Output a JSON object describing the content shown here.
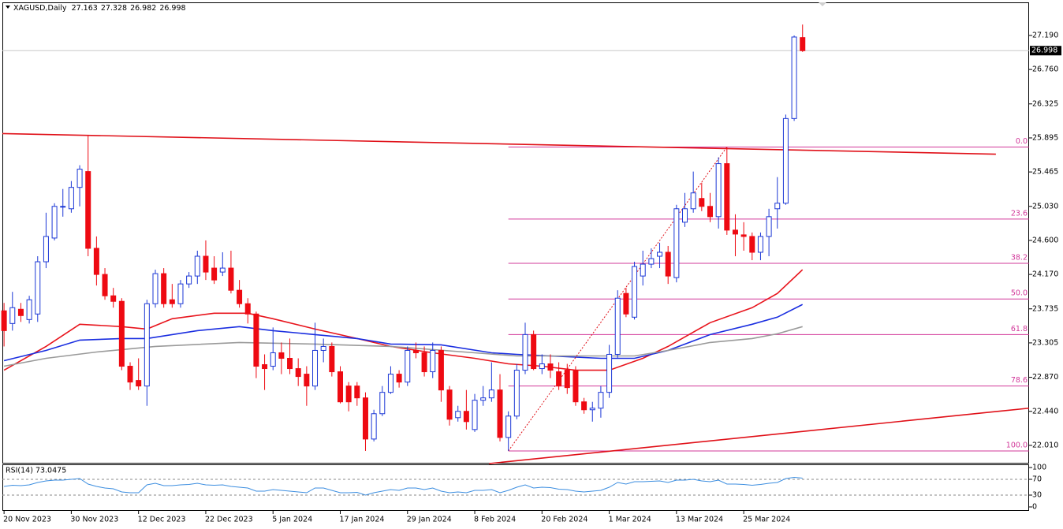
{
  "chart_data": {
    "type": "candlestick",
    "title": "XAGUSD,Daily",
    "categories": [
      "20 Nov 2023",
      null,
      null,
      null,
      null,
      null,
      null,
      null,
      "30 Nov 2023",
      null,
      null,
      null,
      null,
      null,
      null,
      null,
      "12 Dec 2023",
      null,
      null,
      null,
      null,
      null,
      null,
      null,
      "22 Dec 2023",
      null,
      null,
      null,
      null,
      null,
      null,
      null,
      "5 Jan 2024",
      null,
      null,
      null,
      null,
      null,
      null,
      null,
      "17 Jan 2024",
      null,
      null,
      null,
      null,
      null,
      null,
      null,
      "29 Jan 2024",
      null,
      null,
      null,
      null,
      null,
      null,
      null,
      "8 Feb 2024",
      null,
      null,
      null,
      null,
      null,
      null,
      null,
      "20 Feb 2024",
      null,
      null,
      null,
      null,
      null,
      null,
      null,
      "1 Mar 2024",
      null,
      null,
      null,
      null,
      null,
      null,
      null,
      "13 Mar 2024",
      null,
      null,
      null,
      null,
      null,
      null,
      null,
      "25 Mar 2024",
      null,
      null,
      null,
      null,
      null,
      null,
      null
    ],
    "open": [
      23.71,
      23.55,
      23.73,
      23.6,
      23.67,
      24.33,
      24.63,
      25.03,
      25.0,
      25.27,
      25.47,
      24.5,
      24.17,
      23.9,
      23.83,
      23.01,
      22.83,
      22.76,
      23.8,
      24.18,
      23.85,
      23.8,
      24.05,
      24.15,
      24.4,
      24.25,
      24.2,
      24.25,
      23.97,
      23.8,
      23.67,
      23.03,
      23.01,
      23.18,
      23.11,
      22.98,
      22.91,
      22.76,
      23.21,
      23.26,
      22.94,
      22.76,
      22.76,
      22.61,
      22.09,
      22.41,
      22.68,
      22.91,
      22.81,
      23.21,
      23.18,
      22.94,
      23.21,
      22.71,
      22.36,
      22.44,
      22.21,
      22.58,
      22.61,
      22.71,
      22.11,
      22.38,
      22.96,
      23.41,
      22.98,
      23.04,
      22.94,
      22.96,
      22.96,
      22.56,
      22.46,
      22.48,
      22.68,
      23.16,
      23.93,
      23.63,
      24.15,
      24.3,
      24.4,
      24.45,
      24.13,
      24.83,
      25.0,
      25.13,
      25.03,
      24.9,
      25.57,
      24.73,
      24.67,
      24.65,
      24.45,
      24.65,
      25.0,
      25.07,
      26.14,
      27.163
    ],
    "high": [
      23.81,
      23.95,
      23.81,
      23.9,
      24.4,
      24.95,
      25.07,
      25.25,
      25.35,
      25.55,
      25.93,
      24.65,
      24.25,
      24.0,
      23.87,
      23.06,
      23.11,
      23.85,
      24.23,
      24.25,
      24.05,
      24.1,
      24.2,
      24.47,
      24.6,
      24.4,
      24.45,
      24.47,
      24.1,
      23.87,
      23.7,
      23.16,
      23.5,
      23.31,
      23.36,
      23.11,
      23.01,
      23.56,
      23.36,
      23.31,
      23.01,
      22.81,
      22.81,
      22.68,
      22.46,
      22.76,
      23.01,
      22.96,
      23.26,
      23.31,
      23.26,
      23.31,
      23.26,
      22.76,
      22.51,
      22.71,
      22.66,
      22.76,
      23.06,
      22.91,
      22.44,
      23.04,
      23.56,
      23.46,
      23.16,
      23.16,
      23.06,
      23.04,
      23.01,
      22.61,
      22.56,
      22.76,
      23.28,
      23.97,
      24.0,
      24.33,
      24.47,
      24.5,
      24.57,
      24.53,
      25.05,
      25.2,
      25.47,
      25.33,
      25.2,
      25.65,
      25.78,
      24.93,
      24.83,
      24.7,
      24.7,
      25.0,
      25.4,
      26.19,
      27.19,
      27.328
    ],
    "low": [
      23.26,
      23.46,
      23.57,
      23.55,
      23.57,
      24.25,
      24.6,
      24.9,
      24.95,
      25.03,
      24.4,
      24.03,
      23.85,
      23.75,
      22.96,
      22.71,
      22.71,
      22.51,
      23.75,
      23.75,
      23.75,
      23.75,
      24.0,
      24.05,
      24.1,
      24.05,
      24.15,
      23.93,
      23.75,
      23.55,
      22.86,
      22.71,
      22.96,
      22.91,
      22.91,
      22.76,
      22.51,
      22.71,
      23.06,
      22.88,
      22.54,
      22.44,
      22.51,
      21.94,
      22.06,
      22.38,
      22.66,
      22.74,
      22.76,
      23.11,
      22.88,
      22.86,
      22.56,
      22.26,
      22.31,
      22.21,
      22.18,
      22.51,
      22.56,
      22.06,
      21.94,
      22.34,
      22.91,
      22.96,
      22.91,
      22.86,
      22.71,
      22.66,
      22.51,
      22.41,
      22.31,
      22.36,
      22.61,
      23.11,
      23.63,
      23.6,
      24.03,
      24.25,
      24.25,
      24.05,
      24.07,
      24.77,
      24.95,
      24.97,
      24.83,
      24.75,
      24.67,
      24.4,
      24.47,
      24.35,
      24.35,
      24.4,
      24.75,
      25.05,
      26.11,
      26.982
    ],
    "close": [
      23.46,
      23.75,
      23.65,
      23.85,
      24.33,
      24.65,
      25.03,
      25.03,
      25.27,
      25.5,
      24.5,
      24.17,
      23.9,
      23.83,
      23.01,
      22.81,
      22.76,
      23.8,
      24.18,
      23.8,
      23.8,
      24.05,
      24.15,
      24.4,
      24.2,
      24.1,
      24.25,
      23.97,
      23.8,
      23.67,
      23.01,
      22.98,
      23.18,
      23.11,
      22.98,
      22.88,
      22.76,
      23.21,
      23.26,
      22.94,
      22.56,
      22.56,
      22.61,
      22.09,
      22.41,
      22.68,
      22.91,
      22.81,
      23.21,
      23.18,
      22.94,
      23.21,
      22.71,
      22.34,
      22.44,
      22.31,
      22.58,
      22.61,
      22.71,
      22.11,
      22.38,
      22.96,
      23.41,
      22.98,
      23.04,
      22.96,
      22.76,
      22.74,
      22.56,
      22.46,
      22.48,
      22.68,
      23.16,
      23.87,
      23.67,
      24.27,
      24.3,
      24.37,
      24.45,
      24.15,
      25.0,
      25.0,
      25.2,
      25.03,
      24.9,
      25.57,
      24.73,
      24.68,
      24.65,
      24.45,
      24.65,
      24.9,
      25.07,
      26.14,
      27.17,
      26.998
    ],
    "bull_color": "#1c38d6",
    "bear_color": "#ee0a12",
    "xlim": [
      -0.2,
      121.95
    ],
    "ylim": [
      21.79,
      27.608
    ],
    "yticks": [
      {
        "value": 27.19,
        "label": "27.190"
      },
      {
        "value": 26.76,
        "label": "26.760"
      },
      {
        "value": 26.325,
        "label": "26.325"
      },
      {
        "value": 25.895,
        "label": "25.895"
      },
      {
        "value": 25.465,
        "label": "25.465"
      },
      {
        "value": 25.03,
        "label": "25.030"
      },
      {
        "value": 24.6,
        "label": "24.600"
      },
      {
        "value": 24.17,
        "label": "24.170"
      },
      {
        "value": 23.735,
        "label": "23.735"
      },
      {
        "value": 23.305,
        "label": "23.305"
      },
      {
        "value": 22.87,
        "label": "22.870"
      },
      {
        "value": 22.44,
        "label": "22.440"
      },
      {
        "value": 22.01,
        "label": "22.010"
      }
    ],
    "grid": false,
    "moving_averages": [
      {
        "color": "#e8141c",
        "x": [
          0,
          5,
          9,
          14,
          17,
          20,
          25,
          29,
          32,
          37,
          42,
          46,
          51,
          56,
          60,
          64,
          68,
          72,
          76,
          79,
          84,
          89,
          92,
          95
        ],
        "values": [
          22.96,
          23.26,
          23.54,
          23.51,
          23.48,
          23.61,
          23.68,
          23.68,
          23.61,
          23.48,
          23.36,
          23.26,
          23.18,
          23.11,
          23.04,
          23.01,
          22.96,
          22.96,
          23.11,
          23.26,
          23.56,
          23.75,
          23.93,
          24.23
        ]
      },
      {
        "color": "#1a2ee0",
        "x": [
          0,
          5,
          9,
          14,
          17,
          23,
          28,
          32,
          37,
          42,
          46,
          52,
          58,
          61,
          67,
          71,
          75,
          79,
          84,
          89,
          92,
          95
        ],
        "values": [
          23.08,
          23.21,
          23.34,
          23.36,
          23.36,
          23.46,
          23.51,
          23.46,
          23.41,
          23.36,
          23.29,
          23.28,
          23.18,
          23.16,
          23.13,
          23.11,
          23.11,
          23.21,
          23.41,
          23.54,
          23.63,
          23.79
        ]
      },
      {
        "color": "#9a9a9a",
        "x": [
          0,
          5,
          11,
          18,
          28,
          37,
          46,
          56,
          61,
          67,
          75,
          79,
          84,
          89,
          92,
          95
        ],
        "values": [
          23.01,
          23.11,
          23.19,
          23.26,
          23.31,
          23.29,
          23.26,
          23.18,
          23.14,
          23.14,
          23.14,
          23.21,
          23.31,
          23.36,
          23.42,
          23.51
        ]
      }
    ],
    "trendlines": [
      {
        "color": "#e01018",
        "style": "solid",
        "x": [
          -0.2,
          118
        ],
        "values": [
          25.95,
          25.69
        ]
      },
      {
        "color": "#e01018",
        "style": "solid",
        "x": [
          57.7,
          121.95
        ],
        "values": [
          21.78,
          22.48
        ]
      },
      {
        "color": "#e01018",
        "style": "dotted",
        "x": [
          60,
          86
        ],
        "values": [
          21.94,
          25.78
        ]
      }
    ],
    "fibonacci": {
      "color": "#d2389a",
      "x": [
        60,
        121.95
      ],
      "levels": [
        {
          "value": 25.78,
          "label": "0.0"
        },
        {
          "value": 24.87,
          "label": "23.6"
        },
        {
          "value": 24.31,
          "label": "38.2"
        },
        {
          "value": 23.86,
          "label": "50.0"
        },
        {
          "value": 23.41,
          "label": "61.8"
        },
        {
          "value": 22.76,
          "label": "78.6"
        },
        {
          "value": 21.94,
          "label": "100.0"
        }
      ]
    },
    "rsi": {
      "title": "RSI(14) 73.0475",
      "color": "#3c8ee0",
      "ylim": [
        0,
        100
      ],
      "yticks": [
        100,
        70,
        30,
        0
      ],
      "levels": [
        70,
        30
      ],
      "values": [
        52,
        55,
        54,
        56,
        62,
        66,
        68,
        68,
        70,
        72,
        58,
        52,
        48,
        46,
        38,
        36,
        36,
        56,
        60,
        54,
        54,
        56,
        57,
        60,
        56,
        55,
        56,
        52,
        50,
        48,
        40,
        40,
        44,
        42,
        40,
        38,
        36,
        48,
        48,
        42,
        36,
        36,
        37,
        30,
        36,
        40,
        44,
        42,
        48,
        48,
        44,
        48,
        40,
        36,
        38,
        36,
        42,
        42,
        44,
        36,
        42,
        50,
        56,
        48,
        50,
        49,
        45,
        44,
        40,
        38,
        40,
        42,
        50,
        62,
        58,
        64,
        64,
        65,
        66,
        62,
        68,
        68,
        70,
        66,
        64,
        68,
        58,
        58,
        57,
        55,
        57,
        60,
        62,
        72,
        75,
        73.0475
      ]
    }
  }
}
